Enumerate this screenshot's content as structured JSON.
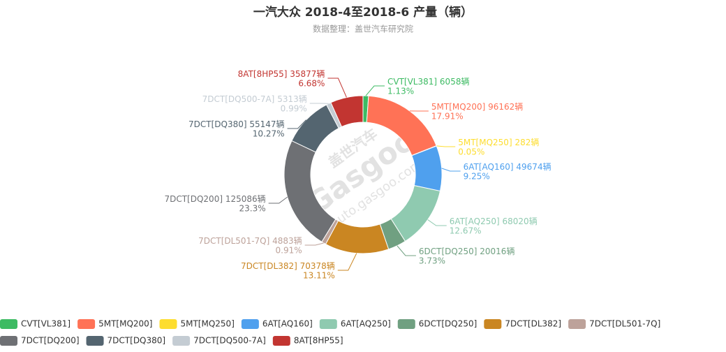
{
  "chart_data": {
    "type": "donut",
    "title": "一汽大众 2018-4至2018-6 产量（辆）",
    "subtitle": "数据整理：盖世汽车研究院",
    "categories": [
      "CVT[VL381]",
      "5MT[MQ200]",
      "5MT[MQ250]",
      "6AT[AQ160]",
      "6AT[AQ250]",
      "6DCT[DQ250]",
      "7DCT[DL382]",
      "7DCT[DL501-7Q]",
      "7DCT[DQ200]",
      "7DCT[DQ380]",
      "7DCT[DQ500-7A]",
      "8AT[8HP55]"
    ],
    "values": [
      6058,
      96162,
      282,
      49674,
      68020,
      20016,
      70378,
      4883,
      125086,
      55147,
      5313,
      35877
    ],
    "value_labels": [
      "6058辆",
      "96162辆",
      "282辆",
      "49674辆",
      "68020辆",
      "20016辆",
      "70378辆",
      "4883辆",
      "125086辆",
      "55147辆",
      "5313辆",
      "35877辆"
    ],
    "percent_labels": [
      "1.13%",
      "17.91%",
      "0.05%",
      "9.25%",
      "12.67%",
      "3.73%",
      "13.11%",
      "0.91%",
      "23.3%",
      "10.27%",
      "0.99%",
      "6.68%"
    ],
    "colors": [
      "#3dbb63",
      "#ff7256",
      "#fddd2f",
      "#4fa0ee",
      "#8fcab0",
      "#70a081",
      "#ca8622",
      "#bda29a",
      "#6e7074",
      "#546570",
      "#c4ccd3",
      "#c23531"
    ],
    "legend": "bottom"
  },
  "watermark": [
    "盖世汽车",
    "Gasgoo",
    "auto.gasgoo.com"
  ]
}
